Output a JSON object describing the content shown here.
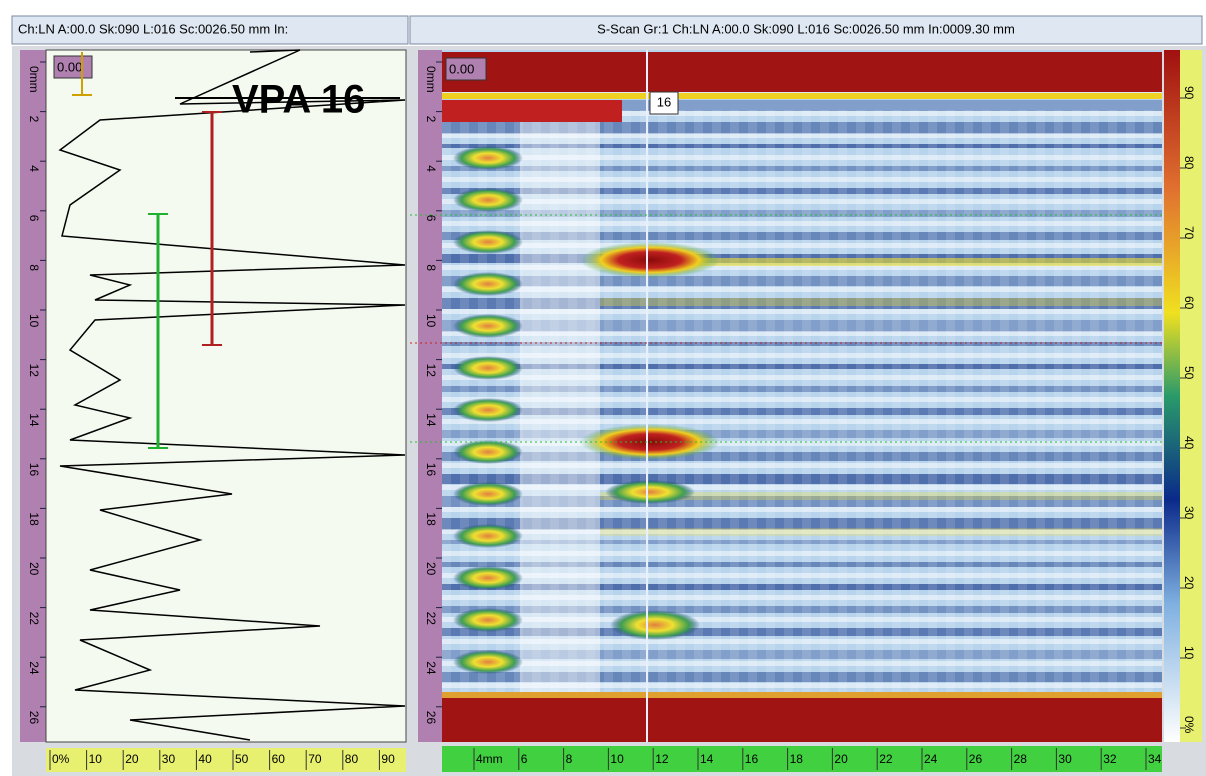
{
  "header": {
    "left": "Ch:LN A:00.0 Sk:090 L:016 Sc:0026.50 mm In:",
    "right": "S-Scan Gr:1 Ch:LN A:00.0 Sk:090 L:016 Sc:0026.50 mm In:0009.30 mm"
  },
  "ascan": {
    "gate_label": "0.00",
    "annotation": "VPA 16",
    "depth_labels": [
      "0mm",
      "2",
      "4",
      "6",
      "8",
      "10",
      "12",
      "14",
      "16",
      "18",
      "20",
      "22",
      "24",
      "26"
    ],
    "amplitude_labels": [
      "0%",
      "10",
      "20",
      "30",
      "40",
      "50",
      "60",
      "70",
      "80",
      "90"
    ]
  },
  "sscan": {
    "gate_label": "0.00",
    "cursor_label": "16",
    "depth_labels": [
      "0mm",
      "2",
      "4",
      "6",
      "8",
      "10",
      "12",
      "14",
      "16",
      "18",
      "20",
      "22",
      "24",
      "26"
    ],
    "index_labels": [
      "4mm",
      "6",
      "8",
      "10",
      "12",
      "14",
      "16",
      "18",
      "20",
      "22",
      "24",
      "26",
      "28",
      "30",
      "32",
      "34"
    ],
    "color_scale_labels": [
      "0%",
      "10",
      "20",
      "30",
      "40",
      "50",
      "60",
      "70",
      "80",
      "90"
    ]
  }
}
